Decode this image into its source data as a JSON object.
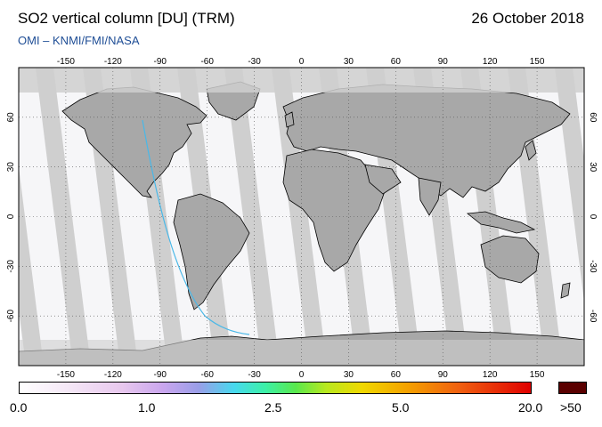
{
  "header": {
    "title": "SO2 vertical column [DU] (TRM)",
    "date": "26 October 2018",
    "credit": "OMI  –  KNMI/FMI/NASA"
  },
  "map": {
    "lon_labels": [
      "-150",
      "-120",
      "-90",
      "-60",
      "-30",
      "0",
      "30",
      "60",
      "90",
      "120",
      "150"
    ],
    "lon_values": [
      -150,
      -120,
      -90,
      -60,
      -30,
      0,
      30,
      60,
      90,
      120,
      150
    ],
    "lat_labels": [
      "60",
      "30",
      "0",
      "-30",
      "-60"
    ],
    "lat_values": [
      60,
      30,
      0,
      -30,
      -60
    ],
    "land_color": "#aaaaaa",
    "nodata_color": "#cfcfcf",
    "swath_color": "#f6f6f8"
  },
  "colorbar": {
    "labels": [
      "0.0",
      "1.0",
      "2.5",
      "5.0",
      "20.0",
      ">50"
    ],
    "overflow_color": "#5a0000"
  }
}
